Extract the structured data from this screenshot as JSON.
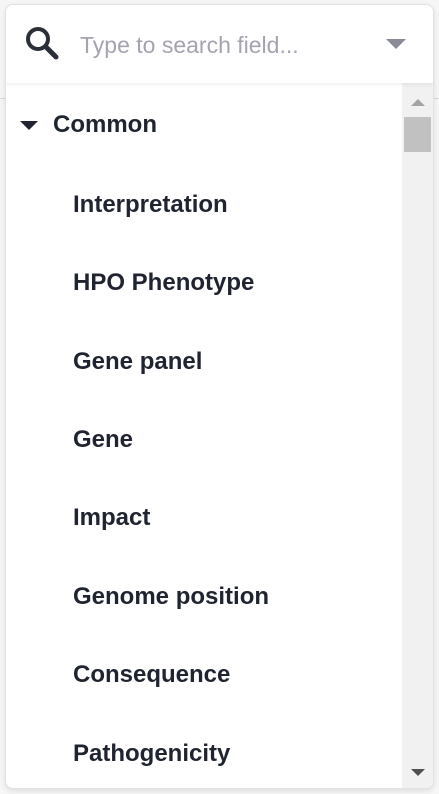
{
  "search": {
    "placeholder": "Type to search field..."
  },
  "group": {
    "label": "Common",
    "expanded": true
  },
  "fields": [
    {
      "label": "Interpretation"
    },
    {
      "label": "HPO Phenotype"
    },
    {
      "label": "Gene panel"
    },
    {
      "label": "Gene"
    },
    {
      "label": "Impact"
    },
    {
      "label": "Genome position"
    },
    {
      "label": "Consequence"
    },
    {
      "label": "Pathogenicity"
    }
  ],
  "icons": {
    "search": "search-icon",
    "dropdown": "chevron-down-icon",
    "group": "caret-down-icon"
  },
  "colors": {
    "text": "#1f2430",
    "placeholder": "#a4a4b0",
    "scrollbar_track": "#f1f1f1",
    "scrollbar_thumb": "#c1c1c1"
  }
}
